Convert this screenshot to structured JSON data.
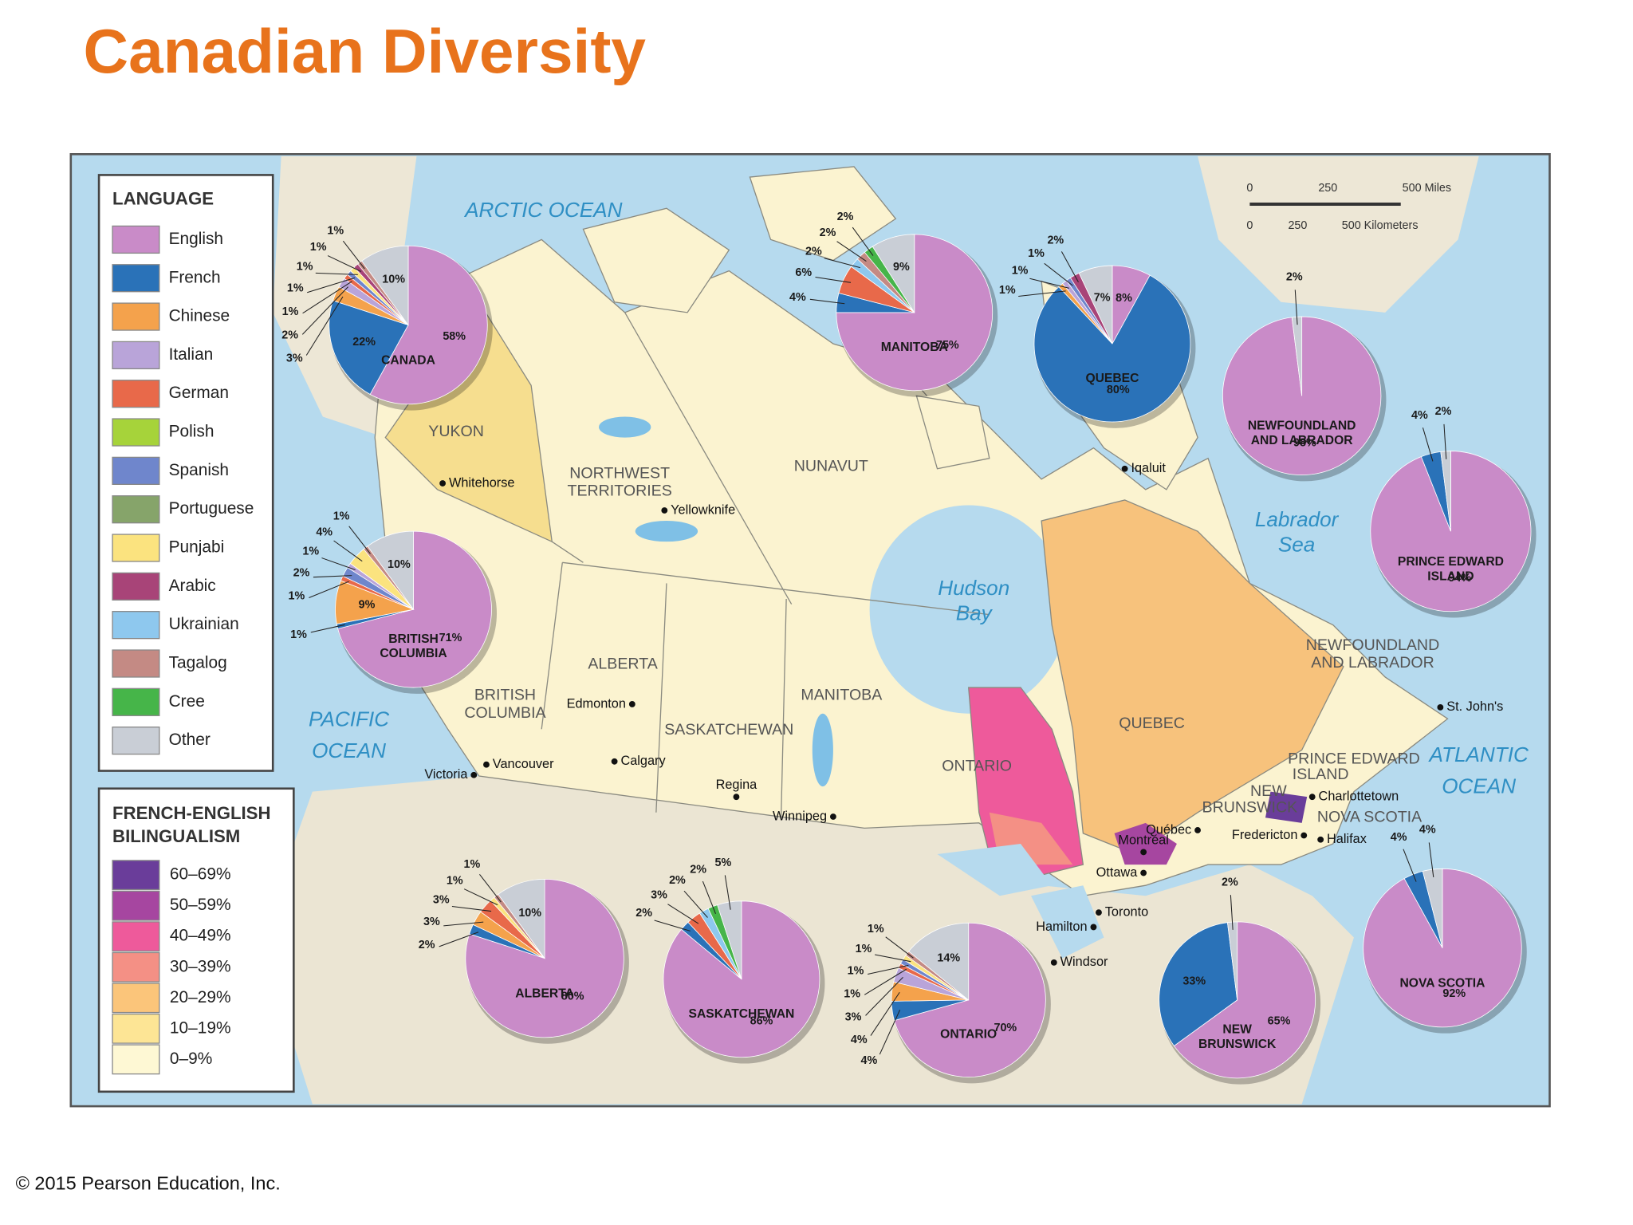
{
  "title": "Canadian Diversity",
  "copyright": "© 2015 Pearson Education, Inc.",
  "legend_language": {
    "title": "LANGUAGE",
    "items": [
      "English",
      "French",
      "Chinese",
      "Italian",
      "German",
      "Polish",
      "Spanish",
      "Portuguese",
      "Punjabi",
      "Arabic",
      "Ukrainian",
      "Tagalog",
      "Cree",
      "Other"
    ],
    "colors": [
      "#c98bc8",
      "#2a72b8",
      "#f4a24c",
      "#b9a4d9",
      "#e8694a",
      "#a6d33a",
      "#6f86cc",
      "#86a46a",
      "#fbe37f",
      "#a84478",
      "#8ec8ee",
      "#c48a84",
      "#46b549",
      "#c9ced6"
    ]
  },
  "legend_bilingualism": {
    "title": [
      "FRENCH-ENGLISH",
      "BILINGUALISM"
    ],
    "items": [
      "60–69%",
      "50–59%",
      "40–49%",
      "30–39%",
      "20–29%",
      "10–19%",
      "0–9%"
    ],
    "colors": [
      "#6a3d9a",
      "#a646a0",
      "#ee5a9b",
      "#f49085",
      "#fbc57a",
      "#fde595",
      "#fef8d4"
    ]
  },
  "scale": {
    "miles": [
      "0",
      "250",
      "500 Miles"
    ],
    "km": [
      "0",
      "250",
      "500 Kilometers"
    ]
  },
  "map": {
    "water": [
      "ARCTIC OCEAN",
      "PACIFIC",
      "OCEAN",
      "Hudson",
      "Bay",
      "Labrador",
      "Sea",
      "ATLANTIC",
      "OCEAN"
    ],
    "regions": [
      "YUKON",
      "NORTHWEST",
      "TERRITORIES",
      "NUNAVUT",
      "ALBERTA",
      "BRITISH",
      "COLUMBIA",
      "SASKATCHEWAN",
      "MANITOBA",
      "ONTARIO",
      "QUEBEC",
      "NEWFOUNDLAND",
      "AND LABRADOR",
      "PRINCE EDWARD",
      "ISLAND",
      "NEW",
      "BRUNSWICK",
      "NOVA SCOTIA"
    ],
    "cities": [
      "Whitehorse",
      "Yellowknife",
      "Iqaluit",
      "Edmonton",
      "Calgary",
      "Regina",
      "Winnipeg",
      "Vancouver",
      "Victoria",
      "St. John's",
      "Charlottetown",
      "Halifax",
      "Fredericton",
      "Québec",
      "Montréal",
      "Ottawa",
      "Toronto",
      "Hamilton",
      "Windsor"
    ]
  },
  "pies": [
    {
      "name": [
        "CANADA"
      ],
      "values": [
        58,
        22,
        3,
        2,
        1,
        1,
        1,
        1,
        1,
        10
      ],
      "value_labels": [
        "58%",
        "22%",
        "3%",
        "2%",
        "1%",
        "1%",
        "1%",
        "1%",
        "1%",
        "10%"
      ],
      "colors": [
        "#c98bc8",
        "#2a72b8",
        "#f4a24c",
        "#b9a4d9",
        "#e8694a",
        "#6f86cc",
        "#fbe37f",
        "#a84478",
        "#c48a84",
        "#c9ced6"
      ]
    },
    {
      "name": [
        "MANITOBA"
      ],
      "values": [
        75,
        4,
        6,
        2,
        2,
        2,
        9
      ],
      "value_labels": [
        "75%",
        "4%",
        "6%",
        "2%",
        "2%",
        "2%",
        "9%"
      ],
      "colors": [
        "#c98bc8",
        "#2a72b8",
        "#e8694a",
        "#8ec8ee",
        "#c48a84",
        "#46b549",
        "#c9ced6"
      ]
    },
    {
      "name": [
        "QUEBEC"
      ],
      "values": [
        8,
        80,
        1,
        1,
        1,
        2,
        7
      ],
      "value_labels": [
        "8%",
        "80%",
        "1%",
        "1%",
        "1%",
        "2%",
        "7%"
      ],
      "colors": [
        "#c98bc8",
        "#2a72b8",
        "#f4a24c",
        "#b9a4d9",
        "#6f86cc",
        "#a84478",
        "#c9ced6"
      ]
    },
    {
      "name": [
        "NEWFOUNDLAND",
        "AND LABRADOR"
      ],
      "values": [
        98,
        2
      ],
      "value_labels": [
        "98%",
        "2%"
      ],
      "colors": [
        "#c98bc8",
        "#c9ced6"
      ]
    },
    {
      "name": [
        "PRINCE EDWARD",
        "ISLAND"
      ],
      "values": [
        94,
        4,
        2
      ],
      "value_labels": [
        "94%",
        "4%",
        "2%"
      ],
      "colors": [
        "#c98bc8",
        "#2a72b8",
        "#c9ced6"
      ]
    },
    {
      "name": [
        "BRITISH",
        "COLUMBIA"
      ],
      "values": [
        71,
        1,
        9,
        1,
        2,
        1,
        4,
        1,
        10
      ],
      "value_labels": [
        "71%",
        "1%",
        "9%",
        "1%",
        "2%",
        "1%",
        "4%",
        "1%",
        "10%"
      ],
      "colors": [
        "#c98bc8",
        "#2a72b8",
        "#f4a24c",
        "#e8694a",
        "#6f86cc",
        "#b9a4d9",
        "#fbe37f",
        "#c48a84",
        "#c9ced6"
      ]
    },
    {
      "name": [
        "ALBERTA"
      ],
      "values": [
        80,
        2,
        3,
        3,
        1,
        1,
        10
      ],
      "value_labels": [
        "80%",
        "2%",
        "3%",
        "3%",
        "1%",
        "1%",
        "10%"
      ],
      "colors": [
        "#c98bc8",
        "#2a72b8",
        "#f4a24c",
        "#e8694a",
        "#fbe37f",
        "#c48a84",
        "#c9ced6"
      ]
    },
    {
      "name": [
        "SASKATCHEWAN"
      ],
      "values": [
        86,
        2,
        3,
        2,
        2,
        5
      ],
      "value_labels": [
        "86%",
        "2%",
        "3%",
        "2%",
        "2%",
        "5%"
      ],
      "colors": [
        "#c98bc8",
        "#2a72b8",
        "#e8694a",
        "#8ec8ee",
        "#46b549",
        "#c9ced6"
      ]
    },
    {
      "name": [
        "ONTARIO"
      ],
      "values": [
        70,
        4,
        4,
        3,
        1,
        1,
        1,
        1,
        14
      ],
      "value_labels": [
        "70%",
        "4%",
        "4%",
        "3%",
        "1%",
        "1%",
        "1%",
        "1%",
        "14%"
      ],
      "colors": [
        "#c98bc8",
        "#2a72b8",
        "#f4a24c",
        "#b9a4d9",
        "#e8694a",
        "#6f86cc",
        "#fbe37f",
        "#c48a84",
        "#c9ced6"
      ]
    },
    {
      "name": [
        "NEW",
        "BRUNSWICK"
      ],
      "values": [
        65,
        33,
        2
      ],
      "value_labels": [
        "65%",
        "33%",
        "2%"
      ],
      "colors": [
        "#c98bc8",
        "#2a72b8",
        "#c9ced6"
      ]
    },
    {
      "name": [
        "NOVA SCOTIA"
      ],
      "values": [
        92,
        4,
        4
      ],
      "value_labels": [
        "92%",
        "4%",
        "4%"
      ],
      "colors": [
        "#c98bc8",
        "#2a72b8",
        "#c9ced6"
      ]
    }
  ]
}
